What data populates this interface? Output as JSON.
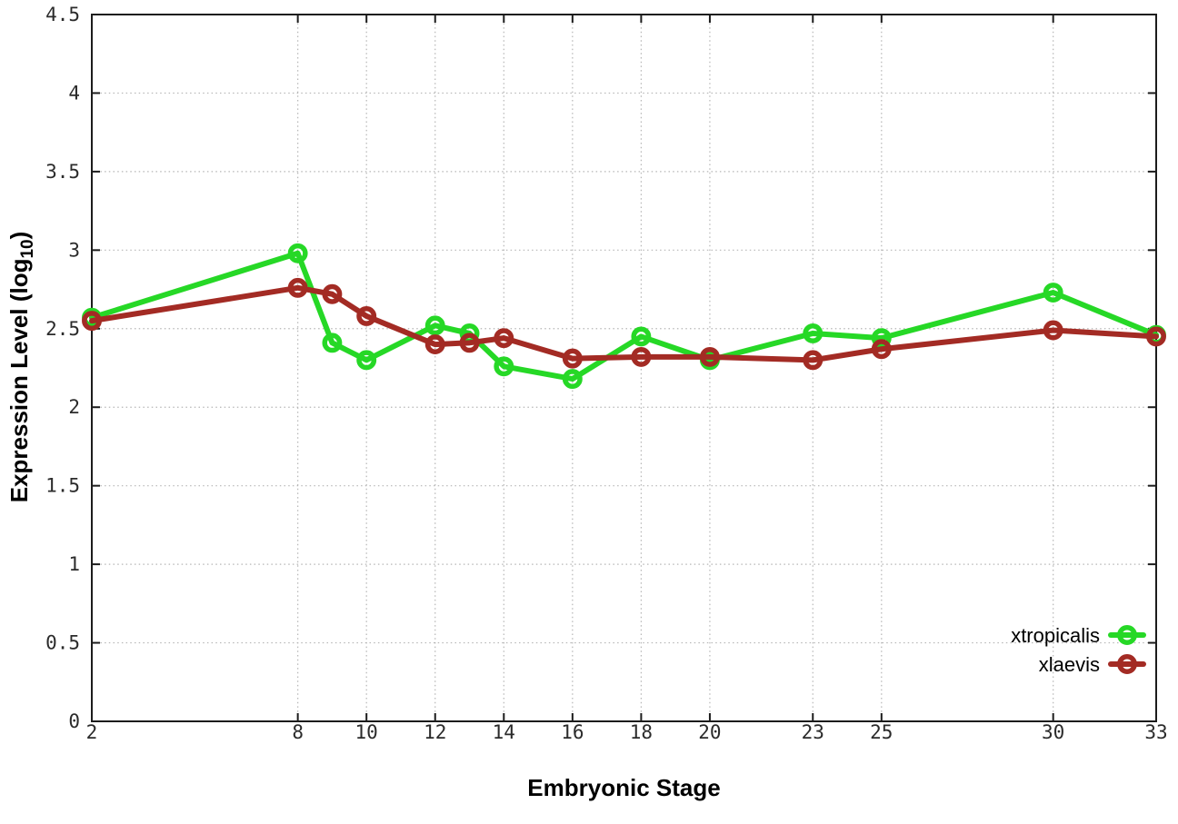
{
  "chart_data": {
    "type": "line",
    "title": "",
    "xlabel": "Embryonic Stage",
    "ylabel": {
      "pre": "Expression Level (log",
      "sub": "10",
      "post": ")"
    },
    "xlim": [
      2,
      33
    ],
    "ylim": [
      0,
      4.5
    ],
    "grid": true,
    "legend_position": "bottom-right",
    "x": [
      2,
      8,
      9,
      10,
      12,
      13,
      14,
      16,
      18,
      20,
      23,
      25,
      30,
      33
    ],
    "xtick_values": [
      2,
      8,
      10,
      12,
      14,
      16,
      18,
      20,
      23,
      25,
      30,
      33
    ],
    "xtick_labels": [
      "2",
      "8",
      "10",
      "12",
      "14",
      "16",
      "18",
      "20",
      "23",
      "25",
      "30",
      "33"
    ],
    "ytick_values": [
      0,
      0.5,
      1,
      1.5,
      2,
      2.5,
      3,
      3.5,
      4,
      4.5
    ],
    "ytick_labels": [
      "0",
      "0.5",
      "1",
      "1.5",
      "2",
      "2.5",
      "3",
      "3.5",
      "4",
      "4.5"
    ],
    "series": [
      {
        "name": "xtropicalis",
        "color": "#26d826",
        "values": [
          2.57,
          2.98,
          2.41,
          2.3,
          2.52,
          2.47,
          2.26,
          2.18,
          2.45,
          2.3,
          2.47,
          2.44,
          2.73,
          2.46
        ]
      },
      {
        "name": "xlaevis",
        "color": "#a32b24",
        "values": [
          2.55,
          2.76,
          2.72,
          2.58,
          2.4,
          2.41,
          2.44,
          2.31,
          2.32,
          2.32,
          2.3,
          2.37,
          2.49,
          2.45
        ]
      }
    ],
    "style": {
      "grid_color": "#b5b5b5",
      "axis_color": "#1c1c1c",
      "tick_text_color": "#2b2b2b",
      "background": "#ffffff"
    }
  }
}
